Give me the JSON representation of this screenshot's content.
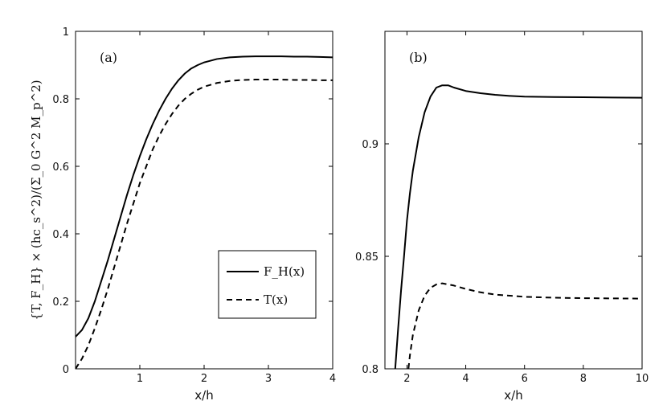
{
  "chart_data": [
    {
      "type": "line",
      "panel_label": "(a)",
      "xlabel": "x/h",
      "ylabel": "{T, F_H} × (hc_s^2)/(Σ_0 G^2 M_p^2)",
      "xlim": [
        0,
        4
      ],
      "ylim": [
        0,
        1
      ],
      "xticks": [
        "1",
        "2",
        "3",
        "4"
      ],
      "yticks": [
        "0",
        "0.2",
        "0.4",
        "0.6",
        "0.8",
        "1"
      ],
      "legend": {
        "placement": "bottom-right",
        "entries": [
          "F_H(x)",
          "T(x)"
        ]
      },
      "series": [
        {
          "name": "F_H(x)",
          "style": "solid",
          "x": [
            0.0,
            0.1,
            0.2,
            0.3,
            0.4,
            0.5,
            0.6,
            0.7,
            0.8,
            0.9,
            1.0,
            1.1,
            1.2,
            1.3,
            1.4,
            1.5,
            1.6,
            1.7,
            1.8,
            1.9,
            2.0,
            2.2,
            2.4,
            2.6,
            2.8,
            3.0,
            3.2,
            3.4,
            3.6,
            3.8,
            4.0
          ],
          "y": [
            0.095,
            0.115,
            0.15,
            0.2,
            0.26,
            0.32,
            0.385,
            0.45,
            0.515,
            0.575,
            0.63,
            0.68,
            0.725,
            0.765,
            0.8,
            0.83,
            0.855,
            0.875,
            0.89,
            0.9,
            0.908,
            0.918,
            0.923,
            0.925,
            0.926,
            0.926,
            0.926,
            0.925,
            0.925,
            0.924,
            0.923
          ]
        },
        {
          "name": "T(x)",
          "style": "dashed",
          "x": [
            0.0,
            0.1,
            0.2,
            0.3,
            0.4,
            0.5,
            0.6,
            0.7,
            0.8,
            0.9,
            1.0,
            1.1,
            1.2,
            1.3,
            1.4,
            1.5,
            1.6,
            1.7,
            1.8,
            1.9,
            2.0,
            2.2,
            2.4,
            2.6,
            2.8,
            3.0,
            3.2,
            3.4,
            3.6,
            3.8,
            4.0
          ],
          "y": [
            0.0,
            0.03,
            0.07,
            0.12,
            0.175,
            0.235,
            0.3,
            0.365,
            0.43,
            0.49,
            0.55,
            0.6,
            0.65,
            0.69,
            0.725,
            0.755,
            0.78,
            0.8,
            0.815,
            0.827,
            0.836,
            0.847,
            0.853,
            0.856,
            0.857,
            0.857,
            0.857,
            0.856,
            0.856,
            0.855,
            0.855
          ]
        }
      ]
    },
    {
      "type": "line",
      "panel_label": "(b)",
      "xlabel": "x/h",
      "ylabel": "",
      "xlim": [
        1.25,
        10
      ],
      "ylim": [
        0.8,
        0.95
      ],
      "xticks": [
        "2",
        "4",
        "6",
        "8",
        "10"
      ],
      "yticks": [
        "0.8",
        "0.85",
        "0.9"
      ],
      "series": [
        {
          "name": "F_H(x)",
          "style": "solid",
          "x": [
            1.6,
            1.7,
            1.8,
            1.9,
            2.0,
            2.1,
            2.2,
            2.4,
            2.6,
            2.8,
            3.0,
            3.2,
            3.4,
            3.6,
            4.0,
            4.5,
            5.0,
            5.5,
            6.0,
            7.0,
            8.0,
            9.0,
            10.0
          ],
          "y": [
            0.8,
            0.818,
            0.835,
            0.85,
            0.866,
            0.878,
            0.888,
            0.903,
            0.914,
            0.921,
            0.925,
            0.926,
            0.926,
            0.925,
            0.9235,
            0.9225,
            0.9218,
            0.9213,
            0.921,
            0.9208,
            0.9207,
            0.9206,
            0.9205
          ]
        },
        {
          "name": "T(x)",
          "style": "dashed",
          "x": [
            2.05,
            2.1,
            2.2,
            2.4,
            2.6,
            2.8,
            3.0,
            3.2,
            3.4,
            3.6,
            4.0,
            4.5,
            5.0,
            5.5,
            6.0,
            7.0,
            8.0,
            9.0,
            10.0
          ],
          "y": [
            0.8,
            0.806,
            0.815,
            0.826,
            0.8325,
            0.836,
            0.8375,
            0.838,
            0.8375,
            0.837,
            0.8355,
            0.834,
            0.833,
            0.8325,
            0.832,
            0.8316,
            0.8314,
            0.8313,
            0.8312
          ]
        }
      ]
    }
  ]
}
